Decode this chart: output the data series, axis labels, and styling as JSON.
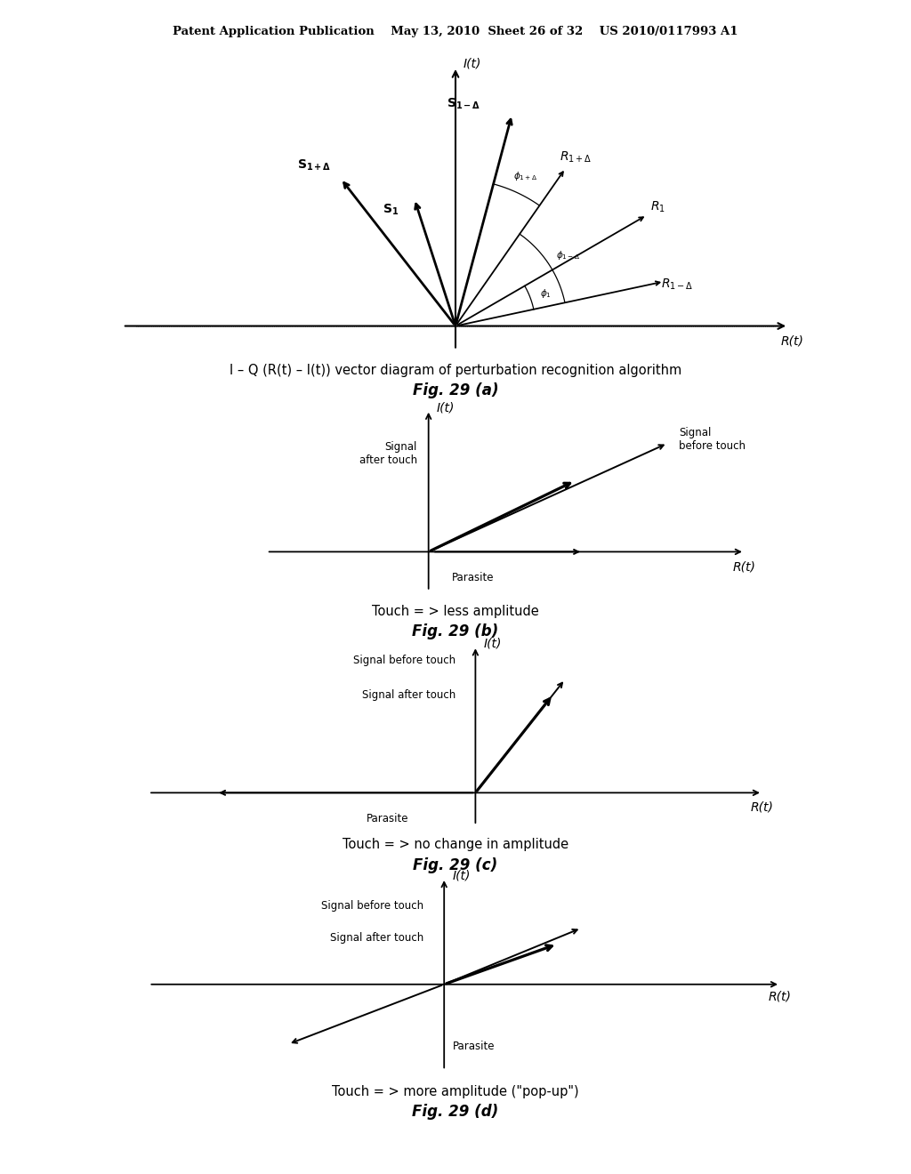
{
  "bg_color": "#ffffff",
  "header_text": "Patent Application Publication    May 13, 2010  Sheet 26 of 32    US 2010/0117993 A1",
  "fig_a_caption1": "I – Q (R(t) – I(t)) vector diagram of perturbation recognition algorithm",
  "fig_a_caption2": "Fig. 29 (a)",
  "fig_b_caption1": "Touch = > less amplitude",
  "fig_b_caption2": "Fig. 29 (b)",
  "fig_c_caption1": "Touch = > no change in amplitude",
  "fig_c_caption2": "Fig. 29 (c)",
  "fig_d_caption1": "Touch = > more amplitude (\"pop-up\")",
  "fig_d_caption2": "Fig. 29 (d)"
}
